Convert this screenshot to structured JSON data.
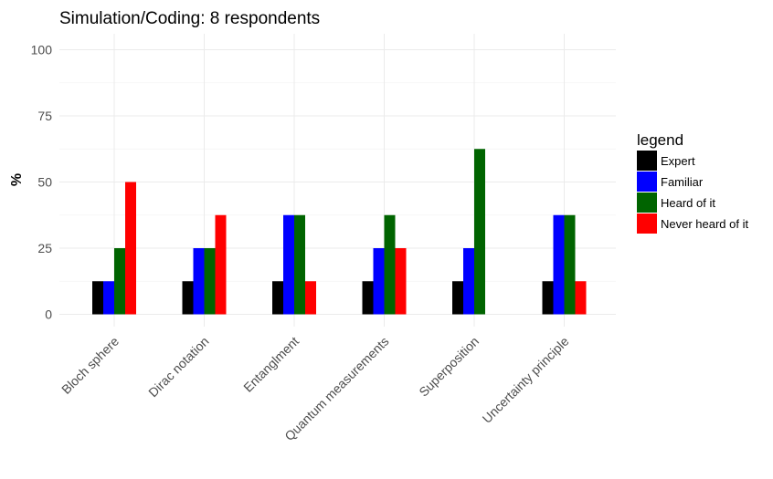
{
  "chart_data": {
    "type": "bar",
    "title": "Simulation/Coding: 8 respondents",
    "xlabel": "",
    "ylabel": "%",
    "ylim": [
      0,
      100
    ],
    "yticks": [
      0,
      25,
      50,
      75,
      100
    ],
    "grid": true,
    "legend": {
      "title": "legend",
      "position": "right"
    },
    "categories": [
      "Bloch sphere",
      "Dirac notation",
      "Entanglment",
      "Quantum measurements",
      "Superposition",
      "Uncertainty principle"
    ],
    "series": [
      {
        "name": "Expert",
        "color": "#000000",
        "values": [
          12.5,
          12.5,
          12.5,
          12.5,
          12.5,
          12.5
        ]
      },
      {
        "name": "Familiar",
        "color": "#0000ff",
        "values": [
          12.5,
          25,
          37.5,
          25,
          25,
          37.5
        ]
      },
      {
        "name": "Heard of it",
        "color": "#006400",
        "values": [
          25,
          25,
          37.5,
          37.5,
          62.5,
          37.5
        ]
      },
      {
        "name": "Never heard of it",
        "color": "#ff0000",
        "values": [
          50,
          37.5,
          12.5,
          25,
          null,
          12.5
        ]
      }
    ]
  }
}
